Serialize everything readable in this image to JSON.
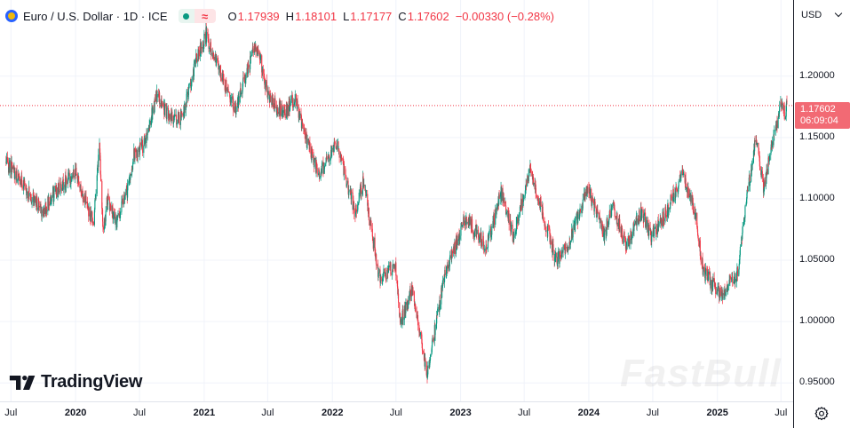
{
  "legend": {
    "title": "Euro / U.S. Dollar · 1D · ICE",
    "open_label": "O",
    "open": "1.17939",
    "high_label": "H",
    "high": "1.18101",
    "low_label": "L",
    "low": "1.17177",
    "close_label": "C",
    "close": "1.17602",
    "change": "−0.00330 (−0.28%)",
    "status_wave_glyph": "≈"
  },
  "toolbar": {
    "currency": "USD"
  },
  "price_tag": {
    "price": "1.17602",
    "countdown": "06:09:04"
  },
  "branding": {
    "logo_text": "TradingView",
    "watermark": "FastBull"
  },
  "colors": {
    "up": "#089981",
    "down": "#f23645",
    "grid": "#f0f3fa",
    "price_line": "#f23645"
  },
  "chart_data": {
    "type": "candlestick",
    "symbol": "EURUSD",
    "interval": "1D",
    "y_ticks": [
      "1.20000",
      "1.15000",
      "1.10000",
      "1.05000",
      "1.00000",
      "0.95000"
    ],
    "x_ticks": [
      {
        "label": "Jul",
        "date": "2019-07-01"
      },
      {
        "label": "2020",
        "date": "2020-01-01",
        "year": true
      },
      {
        "label": "Jul",
        "date": "2020-07-01"
      },
      {
        "label": "2021",
        "date": "2021-01-01",
        "year": true
      },
      {
        "label": "Jul",
        "date": "2021-07-01"
      },
      {
        "label": "2022",
        "date": "2022-01-01",
        "year": true
      },
      {
        "label": "Jul",
        "date": "2022-07-01"
      },
      {
        "label": "2023",
        "date": "2023-01-01",
        "year": true
      },
      {
        "label": "Jul",
        "date": "2023-07-01"
      },
      {
        "label": "2024",
        "date": "2024-01-01",
        "year": true
      },
      {
        "label": "Jul",
        "date": "2024-07-01"
      },
      {
        "label": "2025",
        "date": "2025-01-01",
        "year": true
      },
      {
        "label": "Jul",
        "date": "2025-07-01"
      }
    ],
    "y_range": [
      0.935,
      1.262
    ],
    "x_range": [
      "2019-06-15",
      "2025-07-18"
    ],
    "last_price": 1.17602,
    "price_path": [
      [
        "2019-06-15",
        1.13
      ],
      [
        "2019-07-20",
        1.118
      ],
      [
        "2019-09-01",
        1.1
      ],
      [
        "2019-10-01",
        1.09
      ],
      [
        "2019-11-15",
        1.11
      ],
      [
        "2019-12-31",
        1.121
      ],
      [
        "2020-02-20",
        1.08
      ],
      [
        "2020-03-09",
        1.145
      ],
      [
        "2020-03-20",
        1.07
      ],
      [
        "2020-03-31",
        1.1
      ],
      [
        "2020-04-25",
        1.08
      ],
      [
        "2020-05-31",
        1.11
      ],
      [
        "2020-06-15",
        1.135
      ],
      [
        "2020-07-15",
        1.145
      ],
      [
        "2020-08-20",
        1.185
      ],
      [
        "2020-09-25",
        1.165
      ],
      [
        "2020-10-30",
        1.165
      ],
      [
        "2020-12-10",
        1.215
      ],
      [
        "2021-01-06",
        1.234
      ],
      [
        "2021-03-31",
        1.172
      ],
      [
        "2021-05-25",
        1.225
      ],
      [
        "2021-06-10",
        1.215
      ],
      [
        "2021-06-30",
        1.185
      ],
      [
        "2021-08-20",
        1.168
      ],
      [
        "2021-09-15",
        1.183
      ],
      [
        "2021-10-12",
        1.153
      ],
      [
        "2021-11-24",
        1.12
      ],
      [
        "2022-01-14",
        1.145
      ],
      [
        "2022-03-07",
        1.088
      ],
      [
        "2022-03-31",
        1.115
      ],
      [
        "2022-05-13",
        1.037
      ],
      [
        "2022-06-30",
        1.045
      ],
      [
        "2022-07-14",
        1.0
      ],
      [
        "2022-08-15",
        1.025
      ],
      [
        "2022-09-28",
        0.958
      ],
      [
        "2022-11-15",
        1.035
      ],
      [
        "2023-01-15",
        1.085
      ],
      [
        "2023-03-15",
        1.06
      ],
      [
        "2023-04-26",
        1.105
      ],
      [
        "2023-05-31",
        1.07
      ],
      [
        "2023-07-18",
        1.124
      ],
      [
        "2023-09-30",
        1.05
      ],
      [
        "2023-10-31",
        1.06
      ],
      [
        "2023-12-28",
        1.11
      ],
      [
        "2024-02-14",
        1.07
      ],
      [
        "2024-03-08",
        1.095
      ],
      [
        "2024-04-16",
        1.062
      ],
      [
        "2024-05-31",
        1.09
      ],
      [
        "2024-06-25",
        1.07
      ],
      [
        "2024-07-31",
        1.085
      ],
      [
        "2024-09-25",
        1.12
      ],
      [
        "2024-10-31",
        1.085
      ],
      [
        "2024-11-22",
        1.04
      ],
      [
        "2025-01-13",
        1.022
      ],
      [
        "2025-02-28",
        1.04
      ],
      [
        "2025-03-20",
        1.09
      ],
      [
        "2025-04-21",
        1.15
      ],
      [
        "2025-05-12",
        1.11
      ],
      [
        "2025-06-15",
        1.155
      ],
      [
        "2025-07-01",
        1.18
      ],
      [
        "2025-07-14",
        1.168
      ],
      [
        "2025-07-18",
        1.176
      ]
    ]
  }
}
